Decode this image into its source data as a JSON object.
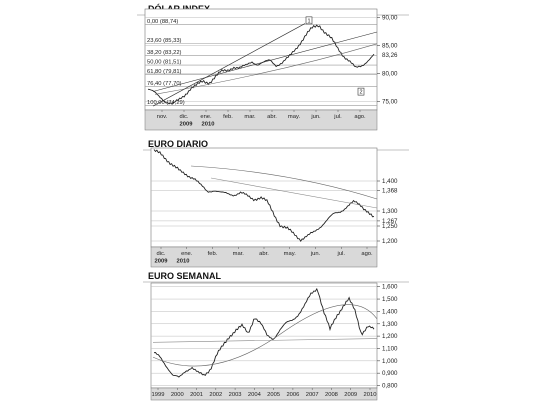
{
  "chart_data": [
    {
      "type": "line",
      "title": "DÓLAR INDEX",
      "x_ticks": [
        "nov.",
        "dic.",
        "ene.",
        "feb.",
        "mar.",
        "abr.",
        "may.",
        "jun.",
        "jul.",
        "ago."
      ],
      "years": [
        "2009",
        "2010"
      ],
      "y_ticks": [
        "90,00",
        "85,00",
        "80,00",
        "75,00"
      ],
      "ylim": [
        73.5,
        91.5
      ],
      "fib_levels": [
        {
          "label": "0,00 (88,74)",
          "value": 88.74
        },
        {
          "label": "23,60 (85,33)",
          "value": 85.33
        },
        {
          "label": "38,20 (83,22)",
          "value": 83.22
        },
        {
          "label": "50,00 (81,51)",
          "value": 81.51
        },
        {
          "label": "61,80 (79,81)",
          "value": 79.81
        },
        {
          "label": "76,40 (77,70)",
          "value": 77.7
        },
        {
          "label": "100,00 (74,29)",
          "value": 74.29
        }
      ],
      "callouts": [
        {
          "label": "83,26",
          "value": 83.26
        }
      ],
      "markers": [
        "1",
        "2"
      ],
      "series": [
        {
          "values": [
            77.2,
            76.6,
            75.8,
            75.0,
            74.5,
            75.2,
            76.2,
            77.4,
            77.9,
            78.6,
            78.4,
            79.4,
            80.3,
            80.6,
            81.2,
            80.9,
            81.4,
            82.2,
            81.6,
            81.9,
            82.4,
            81.5,
            81.9,
            82.8,
            84.2,
            85.6,
            87.0,
            88.2,
            88.7,
            87.3,
            86.2,
            84.6,
            83.2,
            82.2,
            80.9,
            81.4,
            82.4,
            83.3
          ]
        }
      ]
    },
    {
      "type": "line",
      "title": "EURO DIARIO",
      "x_ticks": [
        "dic.",
        "ene.",
        "feb.",
        "mar.",
        "abr.",
        "may.",
        "jun.",
        "jul.",
        "ago."
      ],
      "years": [
        "2009",
        "2010"
      ],
      "y_ticks": [
        "1,400",
        "1,368",
        "1,300",
        "1,267",
        "1,250",
        "1,200"
      ],
      "ylim": [
        1.18,
        1.51
      ],
      "series": [
        {
          "values": [
            1.5,
            1.49,
            1.47,
            1.45,
            1.43,
            1.42,
            1.41,
            1.385,
            1.365,
            1.37,
            1.36,
            1.358,
            1.355,
            1.36,
            1.35,
            1.34,
            1.345,
            1.33,
            1.29,
            1.25,
            1.24,
            1.225,
            1.205,
            1.215,
            1.23,
            1.25,
            1.27,
            1.29,
            1.3,
            1.315,
            1.33,
            1.32,
            1.3,
            1.275
          ]
        }
      ]
    },
    {
      "type": "line",
      "title": "EURO SEMANAL",
      "x_ticks": [
        "1999",
        "2000",
        "2001",
        "2002",
        "2003",
        "2004",
        "2005",
        "2006",
        "2007",
        "2008",
        "2009",
        "2010"
      ],
      "y_ticks": [
        "1,600",
        "1,500",
        "1,400",
        "1,300",
        "1,200",
        "1,100",
        "1,000",
        "0,900",
        "0,800"
      ],
      "ylim": [
        0.78,
        1.63
      ],
      "series": [
        {
          "values": [
            1.06,
            1.03,
            0.96,
            0.88,
            0.86,
            0.92,
            0.95,
            0.9,
            0.88,
            0.94,
            1.05,
            1.12,
            1.2,
            1.25,
            1.28,
            1.22,
            1.36,
            1.3,
            1.2,
            1.18,
            1.25,
            1.3,
            1.33,
            1.38,
            1.45,
            1.54,
            1.59,
            1.4,
            1.25,
            1.36,
            1.44,
            1.5,
            1.4,
            1.22,
            1.28,
            1.25
          ]
        }
      ]
    }
  ]
}
